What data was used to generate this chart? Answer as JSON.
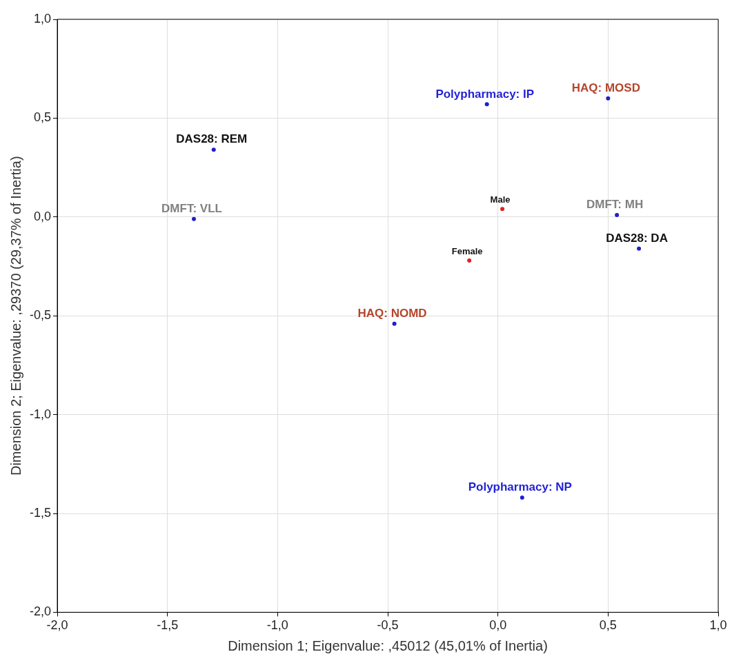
{
  "chart_data": {
    "type": "scatter",
    "xlabel": "Dimension 1; Eigenvalue: ,45012 (45,01% of Inertia)",
    "ylabel": "Dimension 2; Eigenvalue: ,29370 (29,37% of Inertia)",
    "x": [
      -0.05,
      0.5,
      -1.29,
      -1.38,
      0.02,
      0.54,
      0.64,
      -0.13,
      -0.47,
      0.11
    ],
    "values": [
      0.57,
      0.6,
      0.34,
      -0.01,
      0.04,
      0.01,
      -0.16,
      -0.22,
      -0.54,
      -1.42
    ],
    "colors": [
      "#1f1fd0",
      "#1f1fd0",
      "#1f1fd0",
      "#1f1fd0",
      "#e02020",
      "#1f1fd0",
      "#1f1fd0",
      "#e02020",
      "#1f1fd0",
      "#1f1fd0"
    ],
    "annotations": [
      {
        "text": "Polypharmacy: IP",
        "x": -0.05,
        "y": 0.57
      },
      {
        "text": "HAQ: MOSD",
        "x": 0.5,
        "y": 0.6
      },
      {
        "text": "DAS28: REM",
        "x": -1.29,
        "y": 0.34
      },
      {
        "text": "DMFT: VLL",
        "x": -1.38,
        "y": -0.01
      },
      {
        "text": "Male",
        "x": 0.02,
        "y": 0.04
      },
      {
        "text": "DMFT: MH",
        "x": 0.54,
        "y": 0.01
      },
      {
        "text": "DAS28: DA",
        "x": 0.64,
        "y": -0.16
      },
      {
        "text": "Female",
        "x": -0.13,
        "y": -0.22
      },
      {
        "text": "HAQ: NOMD",
        "x": -0.47,
        "y": -0.54
      },
      {
        "text": "Polypharmacy: NP",
        "x": 0.11,
        "y": -1.42
      }
    ],
    "xlim": [
      -2,
      1
    ],
    "ylim": [
      -2,
      1
    ],
    "xticks": [
      {
        "value": -2,
        "label": "-2,0"
      },
      {
        "value": -1.5,
        "label": "-1,5"
      },
      {
        "value": -1,
        "label": "-1,0"
      },
      {
        "value": -0.5,
        "label": "-0,5"
      },
      {
        "value": 0,
        "label": "0,0"
      },
      {
        "value": 0.5,
        "label": "0,5"
      },
      {
        "value": 1,
        "label": "1,0"
      }
    ],
    "yticks": [
      {
        "value": -2,
        "label": "-2,0"
      },
      {
        "value": -1.5,
        "label": "-1,5"
      },
      {
        "value": -1,
        "label": "-1,0"
      },
      {
        "value": -0.5,
        "label": "-0,5"
      },
      {
        "value": 0,
        "label": "0,0"
      },
      {
        "value": 0.5,
        "label": "0,5"
      },
      {
        "value": 1,
        "label": "1,0"
      }
    ],
    "grid": true,
    "marker": "circle",
    "legend": false
  }
}
